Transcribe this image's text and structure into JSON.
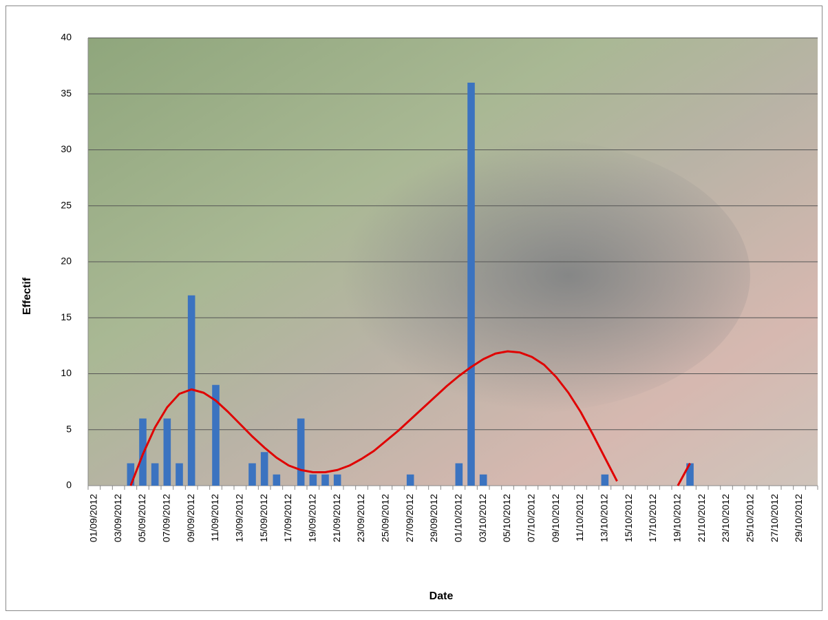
{
  "chart_data": {
    "type": "bar",
    "x_label": "Date",
    "y_label": "Effectif",
    "categories": [
      "01/09/2012",
      null,
      "03/09/2012",
      null,
      "05/09/2012",
      null,
      "07/09/2012",
      null,
      "09/09/2012",
      null,
      "11/09/2012",
      null,
      "13/09/2012",
      null,
      "15/09/2012",
      null,
      "17/09/2012",
      null,
      "19/09/2012",
      null,
      "21/09/2012",
      null,
      "23/09/2012",
      null,
      "25/09/2012",
      null,
      "27/09/2012",
      null,
      "29/09/2012",
      null,
      "01/10/2012",
      null,
      "03/10/2012",
      null,
      "05/10/2012",
      null,
      "07/10/2012",
      null,
      "09/10/2012",
      null,
      "11/10/2012",
      null,
      "13/10/2012",
      null,
      "15/10/2012",
      null,
      "17/10/2012",
      null,
      "19/10/2012",
      null,
      "21/10/2012",
      null,
      "23/10/2012",
      null,
      "25/10/2012",
      null,
      "27/10/2012",
      null,
      "29/10/2012",
      null
    ],
    "series": [
      {
        "type": "bar",
        "color": "#3b73c0",
        "values": [
          0,
          0,
          0,
          2,
          6,
          2,
          6,
          2,
          17,
          0,
          9,
          0,
          0,
          2,
          3,
          1,
          0,
          6,
          1,
          1,
          1,
          0,
          0,
          0,
          0,
          0,
          1,
          0,
          0,
          0,
          2,
          36,
          1,
          0,
          0,
          0,
          0,
          0,
          0,
          0,
          0,
          0,
          1,
          0,
          0,
          0,
          0,
          0,
          0,
          2,
          0,
          0,
          0,
          0,
          0,
          0,
          0,
          0,
          0,
          0
        ]
      },
      {
        "type": "line",
        "color": "#e00000",
        "values": [
          null,
          null,
          null,
          0,
          2.8,
          5.2,
          7,
          8.2,
          8.6,
          8.3,
          7.6,
          6.6,
          5.5,
          4.4,
          3.4,
          2.5,
          1.8,
          1.4,
          1.2,
          1.2,
          1.4,
          1.8,
          2.4,
          3.1,
          4,
          4.9,
          5.9,
          6.9,
          7.9,
          8.9,
          9.8,
          10.6,
          11.3,
          11.8,
          12,
          11.9,
          11.5,
          10.8,
          9.7,
          8.3,
          6.6,
          4.6,
          2.5,
          0.4,
          null,
          null,
          null,
          null,
          0,
          2,
          null,
          null,
          null,
          null,
          null,
          null,
          null,
          null,
          null,
          null
        ]
      }
    ],
    "ylim": [
      0,
      40
    ],
    "yticks": [
      0,
      5,
      10,
      15,
      20,
      25,
      30,
      35,
      40
    ],
    "grid": true
  }
}
